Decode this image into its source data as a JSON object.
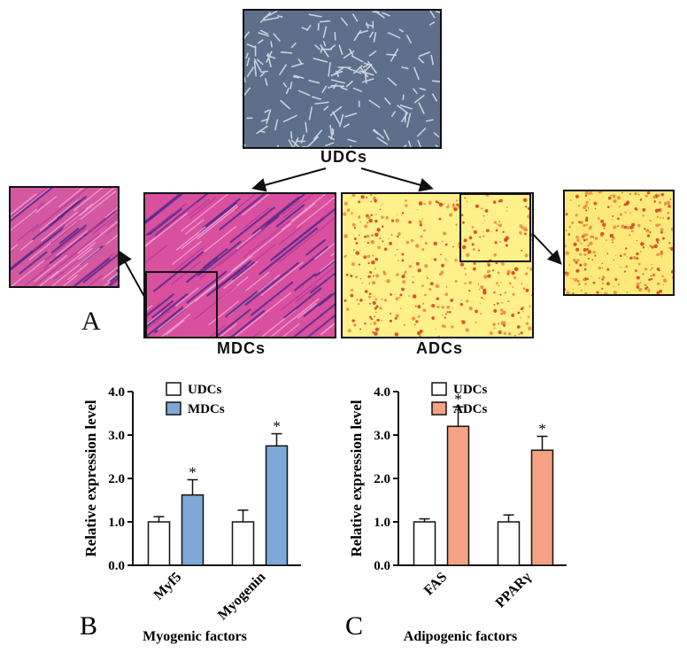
{
  "panel_a": {
    "letter": "A",
    "udcs_label": "UDCs",
    "mdcs_label": "MDCs",
    "adcs_label": "ADCs",
    "colors": {
      "mdc_stain": "#d9509f",
      "adc_bg": "#fff08a",
      "adc_oil": "#d2391f",
      "udc_bg": "#5d6f8a"
    }
  },
  "chart_data": [
    {
      "panel": "B",
      "type": "bar",
      "categories": [
        "Myf5",
        "Myogenin"
      ],
      "series": [
        {
          "name": "UDCs",
          "values": [
            1.0,
            1.0
          ],
          "errors": [
            0.12,
            0.27
          ],
          "color": "#ffffff"
        },
        {
          "name": "MDCs",
          "values": [
            1.62,
            2.75
          ],
          "errors": [
            0.35,
            0.28
          ],
          "color": "#7ea8d6"
        }
      ],
      "significance": [
        "*",
        "*"
      ],
      "ylabel": "Relative expression level",
      "xlabel": "Myogenic factors",
      "ylim": [
        0,
        4.0
      ],
      "yticks": [
        "0.0",
        "1.0",
        "2.0",
        "3.0",
        "4.0"
      ],
      "legend": "top"
    },
    {
      "panel": "C",
      "type": "bar",
      "categories": [
        "FAS",
        "PPARγ"
      ],
      "series": [
        {
          "name": "UDCs",
          "values": [
            1.0,
            1.0
          ],
          "errors": [
            0.07,
            0.16
          ],
          "color": "#ffffff"
        },
        {
          "name": "ADCs",
          "values": [
            3.2,
            2.65
          ],
          "errors": [
            0.45,
            0.32
          ],
          "color": "#f4a184"
        }
      ],
      "significance": [
        "*",
        "*"
      ],
      "ylabel": "Relative expression level",
      "xlabel": "Adipogenic factors",
      "ylim": [
        0,
        4.0
      ],
      "yticks": [
        "0.0",
        "1.0",
        "2.0",
        "3.0",
        "4.0"
      ],
      "legend": "top"
    }
  ]
}
